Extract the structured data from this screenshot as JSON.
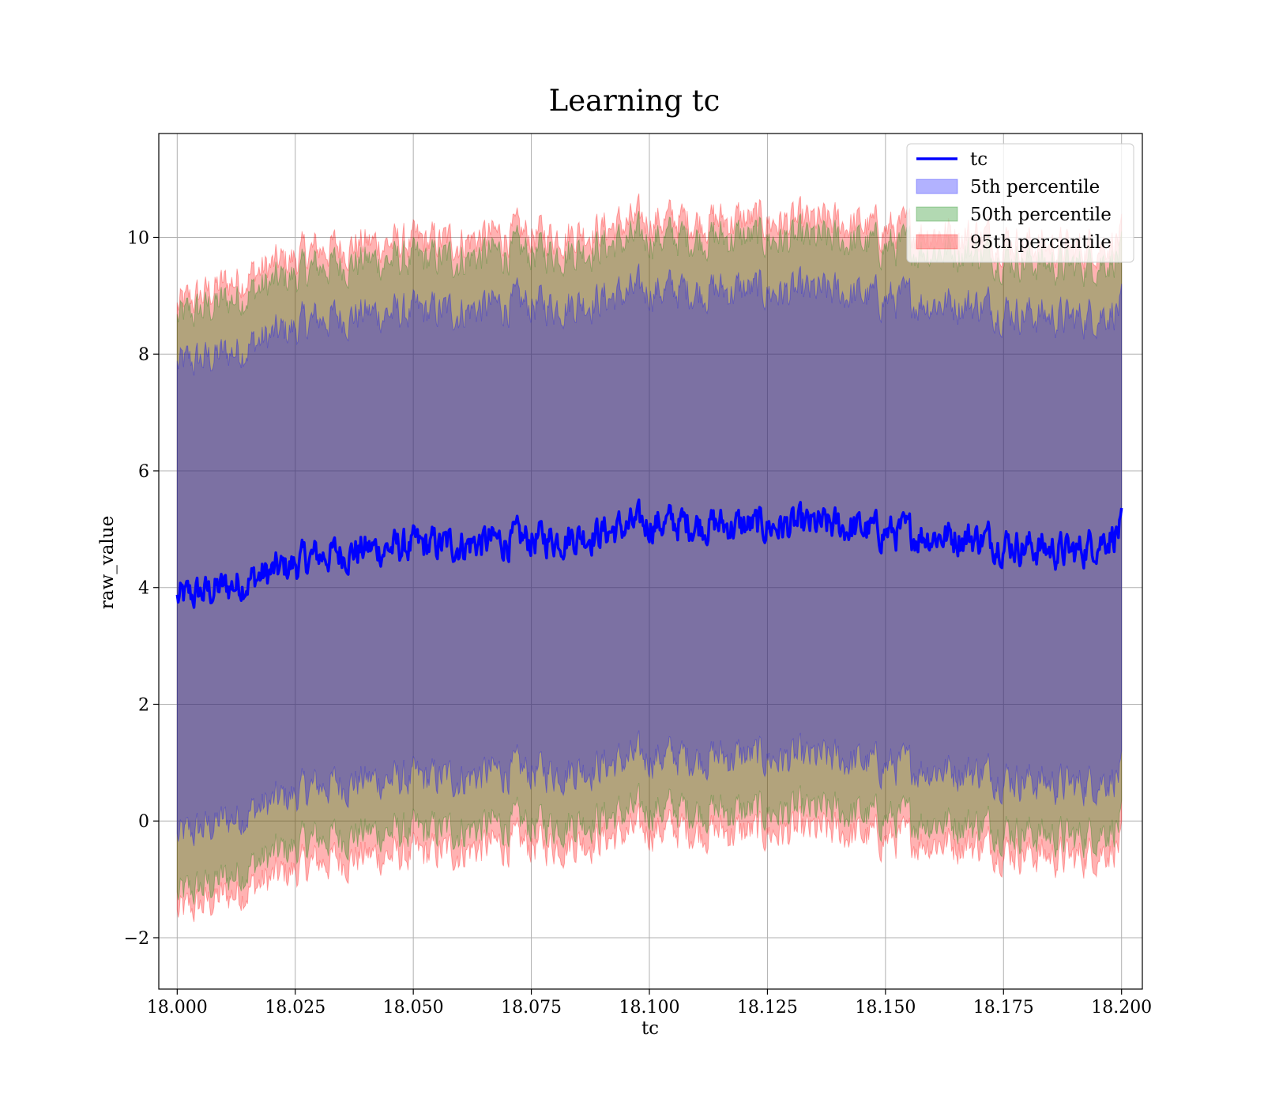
{
  "chart_data": {
    "type": "line",
    "title": "Learning tc",
    "xlabel": "tc",
    "ylabel": "raw_value",
    "xlim": [
      17.9961,
      18.2044
    ],
    "ylim": [
      -2.88,
      11.78
    ],
    "x_range": [
      18.0,
      18.2
    ],
    "xticks": [
      18.0,
      18.025,
      18.05,
      18.075,
      18.1,
      18.125,
      18.15,
      18.175,
      18.2
    ],
    "xtick_labels": [
      "18.000",
      "18.025",
      "18.050",
      "18.075",
      "18.100",
      "18.125",
      "18.150",
      "18.175",
      "18.200"
    ],
    "yticks": [
      -2,
      0,
      2,
      4,
      6,
      8,
      10
    ],
    "ytick_labels": [
      "−2",
      "0",
      "2",
      "4",
      "6",
      "8",
      "10"
    ],
    "grid": true,
    "legend_position": "top-right",
    "series": [
      {
        "name": "tc",
        "kind": "line",
        "color": "#0000ff",
        "x": [
          18.0,
          18.01,
          18.02,
          18.03,
          18.04,
          18.05,
          18.06,
          18.07,
          18.08,
          18.09,
          18.1,
          18.11,
          18.12,
          18.13,
          18.14,
          18.15,
          18.16,
          18.17,
          18.18,
          18.19,
          18.2
        ],
        "y": [
          3.8,
          4.0,
          4.25,
          4.55,
          4.65,
          4.7,
          4.75,
          4.8,
          4.85,
          4.95,
          5.1,
          5.1,
          5.05,
          5.05,
          5.05,
          4.95,
          4.9,
          4.85,
          4.7,
          4.6,
          5.0
        ]
      },
      {
        "name": "5th percentile",
        "kind": "band",
        "color": "#0000ff",
        "x": [
          18.0,
          18.01,
          18.02,
          18.03,
          18.04,
          18.05,
          18.06,
          18.07,
          18.08,
          18.09,
          18.1,
          18.11,
          18.12,
          18.13,
          18.14,
          18.15,
          18.16,
          18.17,
          18.18,
          18.19,
          18.2
        ],
        "lower": [
          -0.3,
          0.0,
          0.3,
          0.6,
          0.7,
          0.7,
          0.75,
          0.85,
          0.85,
          0.95,
          1.1,
          1.1,
          1.1,
          1.05,
          1.05,
          0.95,
          0.9,
          0.85,
          0.7,
          0.6,
          0.8
        ],
        "upper": [
          7.8,
          8.0,
          8.3,
          8.6,
          8.7,
          8.7,
          8.75,
          8.85,
          8.85,
          8.95,
          9.1,
          9.1,
          9.1,
          9.05,
          9.05,
          8.95,
          8.9,
          8.85,
          8.7,
          8.6,
          8.8
        ]
      },
      {
        "name": "50th percentile",
        "kind": "band",
        "color": "#008000",
        "x": [
          18.0,
          18.01,
          18.02,
          18.03,
          18.04,
          18.05,
          18.06,
          18.07,
          18.08,
          18.09,
          18.1,
          18.11,
          18.12,
          18.13,
          18.14,
          18.15,
          18.16,
          18.17,
          18.18,
          18.19,
          18.2
        ],
        "lower": [
          -1.3,
          -1.0,
          -0.6,
          -0.3,
          -0.2,
          -0.2,
          -0.15,
          -0.05,
          -0.05,
          0.05,
          0.2,
          0.2,
          0.15,
          0.15,
          0.15,
          0.05,
          0.0,
          -0.05,
          -0.2,
          -0.3,
          -0.05
        ],
        "upper": [
          8.6,
          8.9,
          9.2,
          9.5,
          9.6,
          9.6,
          9.65,
          9.75,
          9.75,
          9.85,
          10.0,
          10.0,
          10.0,
          9.95,
          9.95,
          9.85,
          9.8,
          9.75,
          9.6,
          9.5,
          9.7
        ]
      },
      {
        "name": "95th percentile",
        "kind": "band",
        "color": "#ff0000",
        "x": [
          18.0,
          18.01,
          18.02,
          18.03,
          18.04,
          18.05,
          18.06,
          18.07,
          18.08,
          18.09,
          18.1,
          18.11,
          18.12,
          18.13,
          18.14,
          18.15,
          18.16,
          18.17,
          18.18,
          18.19,
          18.2
        ],
        "lower": [
          -1.6,
          -1.3,
          -1.0,
          -0.7,
          -0.6,
          -0.6,
          -0.5,
          -0.4,
          -0.4,
          -0.3,
          -0.15,
          -0.15,
          -0.2,
          -0.2,
          -0.2,
          -0.3,
          -0.35,
          -0.4,
          -0.55,
          -0.65,
          -0.4
        ],
        "upper": [
          8.8,
          9.2,
          9.5,
          9.8,
          9.9,
          9.9,
          9.95,
          10.05,
          10.05,
          10.15,
          10.3,
          10.3,
          10.3,
          10.25,
          10.25,
          10.15,
          10.1,
          10.05,
          9.9,
          9.8,
          10.0
        ]
      }
    ]
  }
}
